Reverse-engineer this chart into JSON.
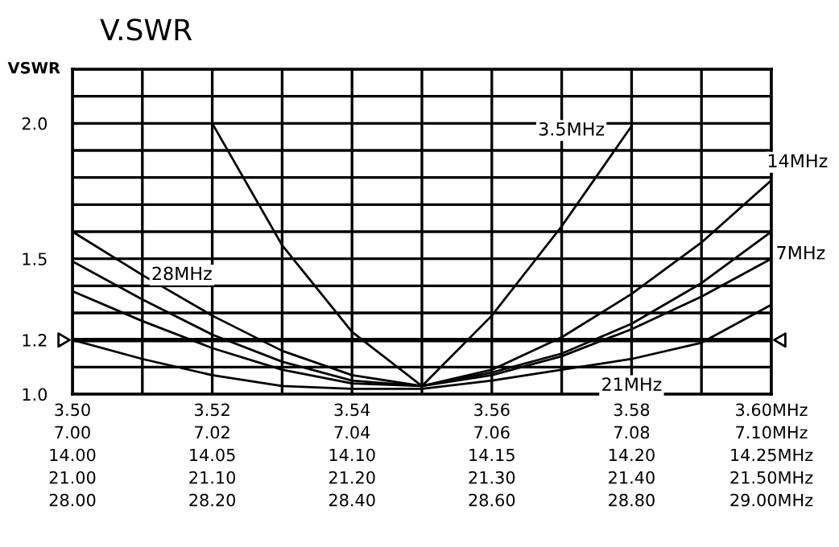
{
  "chart_data": {
    "type": "line",
    "title": "V.SWR",
    "ylabel": "VSWR",
    "ylim": [
      1.0,
      2.2
    ],
    "yticks": [
      {
        "value": 1.0,
        "label": "1.0"
      },
      {
        "value": 1.1,
        "label": null
      },
      {
        "value": 1.2,
        "label": "1.2"
      },
      {
        "value": 1.3,
        "label": null
      },
      {
        "value": 1.4,
        "label": null
      },
      {
        "value": 1.5,
        "label": "1.5"
      },
      {
        "value": 1.6,
        "label": null
      },
      {
        "value": 1.7,
        "label": null
      },
      {
        "value": 1.8,
        "label": null
      },
      {
        "value": 1.9,
        "label": null
      },
      {
        "value": 2.0,
        "label": "2.0"
      },
      {
        "value": 2.1,
        "label": null
      },
      {
        "value": 2.2,
        "label": null
      }
    ],
    "categories": [
      "3.50\n7.00\n14.00\n21.00\n28.00",
      null,
      "3.52\n7.02\n14.05\n21.10\n28.20",
      null,
      "3.54\n7.04\n14.10\n21.20\n28.40",
      null,
      "3.56\n7.06\n14.15\n21.30\n28.60",
      null,
      "3.58\n7.08\n14.20\n21.40\n28.80",
      null,
      "3.60MHz\n7.10MHz\n14.25MHz\n21.50MHz\n29.00MHz"
    ],
    "grid": true,
    "marker": "none",
    "line_style": "solid",
    "ref_lines": [
      {
        "axis": "y",
        "value": 1.2,
        "color": "#000000"
      }
    ],
    "series": [
      {
        "name": "3.5MHz",
        "color": "#000000",
        "values": [
          null,
          null,
          2.0,
          1.55,
          1.23,
          1.03,
          1.29,
          1.62,
          1.99,
          null,
          null
        ]
      },
      {
        "name": "14MHz",
        "color": "#000000",
        "values": [
          1.49,
          1.35,
          1.22,
          1.12,
          1.05,
          1.03,
          1.09,
          1.21,
          1.37,
          1.56,
          1.79
        ]
      },
      {
        "name": "7MHz",
        "color": "#000000",
        "values": [
          1.38,
          1.27,
          1.17,
          1.09,
          1.04,
          1.03,
          1.07,
          1.14,
          1.24,
          1.36,
          1.5
        ]
      },
      {
        "name": "21MHz",
        "color": "#000000",
        "values": [
          1.2,
          1.13,
          1.07,
          1.03,
          1.02,
          1.02,
          1.05,
          1.09,
          1.13,
          1.19,
          1.33
        ]
      },
      {
        "name": "28MHz",
        "color": "#000000",
        "values": [
          1.6,
          1.44,
          1.29,
          1.16,
          1.07,
          1.03,
          1.08,
          1.15,
          1.26,
          1.41,
          1.6
        ]
      }
    ]
  }
}
